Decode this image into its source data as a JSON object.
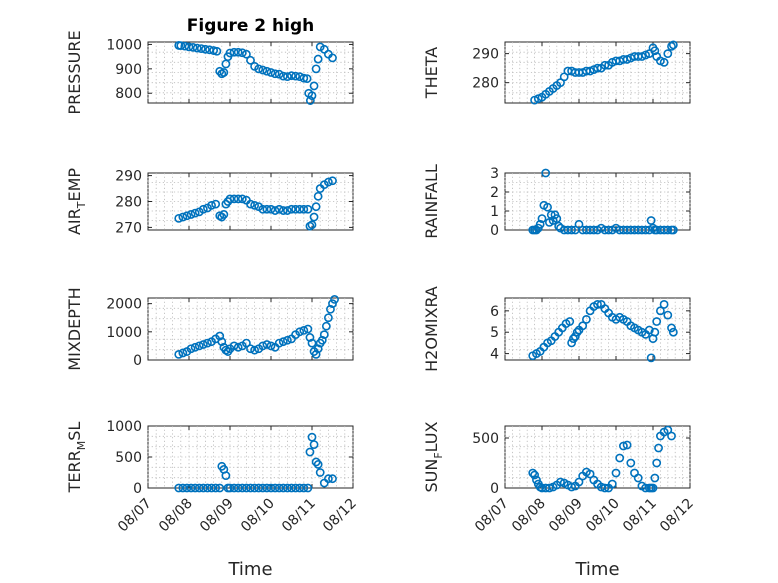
{
  "figure": {
    "title": "Figure 2 high",
    "xlabel": "Time",
    "marker_color": "#0072BD"
  },
  "chart_data": [
    {
      "type": "scatter",
      "ylabel": "PRESSURE",
      "title": "Figure 2 high",
      "xlim": [
        0,
        5
      ],
      "ylim": [
        760,
        1010
      ],
      "yticks": [
        800,
        900,
        1000
      ],
      "grid": true,
      "segments": [
        {
          "x": [
            0.75,
            0.8,
            0.9,
            1.0,
            1.1,
            1.2,
            1.3,
            1.4,
            1.5,
            1.6,
            1.68,
            1.75,
            1.8,
            1.85,
            1.9,
            1.95,
            2.0,
            2.1,
            2.2,
            2.3,
            2.4,
            2.5,
            2.6,
            2.7,
            2.8,
            2.9,
            3.0,
            3.1,
            3.2,
            3.3,
            3.4,
            3.5,
            3.6,
            3.7,
            3.8,
            3.88,
            3.92,
            3.96,
            4.0,
            4.05,
            4.1,
            4.15,
            4.2,
            4.3,
            4.4,
            4.5
          ],
          "y": [
            996,
            995,
            993,
            990,
            988,
            985,
            983,
            980,
            978,
            975,
            972,
            890,
            880,
            885,
            920,
            950,
            965,
            968,
            968,
            966,
            960,
            935,
            910,
            900,
            895,
            890,
            885,
            880,
            878,
            870,
            868,
            872,
            870,
            868,
            862,
            860,
            800,
            770,
            790,
            830,
            900,
            940,
            990,
            980,
            960,
            945
          ]
        }
      ]
    },
    {
      "type": "scatter",
      "ylabel": "THETA",
      "xlim": [
        0,
        5
      ],
      "ylim": [
        273,
        294
      ],
      "yticks": [
        280,
        290
      ],
      "grid": true,
      "segments": [
        {
          "x": [
            0.8,
            0.9,
            1.0,
            1.1,
            1.2,
            1.3,
            1.4,
            1.5,
            1.6,
            1.7,
            1.8,
            1.9,
            2.0,
            2.1,
            2.2,
            2.3,
            2.4,
            2.5,
            2.6,
            2.7,
            2.8,
            2.9,
            3.0,
            3.1,
            3.2,
            3.3,
            3.4,
            3.5,
            3.6,
            3.7,
            3.8,
            3.9,
            4.0,
            4.05,
            4.1,
            4.2,
            4.3,
            4.4,
            4.5,
            4.55
          ],
          "y": [
            274,
            274.5,
            275,
            276,
            277,
            278,
            279,
            280,
            282,
            284,
            284,
            283.5,
            283.5,
            283.5,
            284,
            284,
            284.5,
            285,
            285,
            286,
            286,
            287,
            287.5,
            287.5,
            288,
            288,
            288.5,
            289,
            289,
            289,
            289.5,
            290,
            292,
            291,
            289,
            287.5,
            287,
            290,
            292.5,
            293
          ]
        }
      ]
    },
    {
      "type": "scatter",
      "ylabel": "AIR_TEMP",
      "xlim": [
        0,
        5
      ],
      "ylim": [
        269,
        291
      ],
      "yticks": [
        270,
        280,
        290
      ],
      "grid": true,
      "segments": [
        {
          "x": [
            0.75,
            0.85,
            0.95,
            1.05,
            1.15,
            1.25,
            1.35,
            1.45,
            1.55,
            1.65,
            1.75,
            1.8,
            1.85,
            1.9,
            1.95,
            2.0,
            2.1,
            2.2,
            2.3,
            2.4,
            2.5,
            2.6,
            2.7,
            2.8,
            2.9,
            3.0,
            3.1,
            3.2,
            3.3,
            3.4,
            3.5,
            3.6,
            3.7,
            3.8,
            3.9,
            3.95,
            4.0,
            4.05,
            4.1,
            4.15,
            4.2,
            4.3,
            4.4,
            4.5
          ],
          "y": [
            273.5,
            274,
            274.5,
            275,
            275.5,
            276,
            277,
            277.5,
            278.5,
            279,
            274.5,
            274,
            275,
            279,
            280,
            281,
            281,
            281,
            281,
            280.5,
            279,
            278.5,
            278,
            277,
            277,
            277,
            276.5,
            277,
            276.5,
            276.5,
            277,
            277,
            277,
            277,
            277,
            270.5,
            271,
            274,
            278,
            282,
            285,
            286.5,
            287.5,
            288
          ]
        }
      ]
    },
    {
      "type": "scatter",
      "ylabel": "RAINFALL",
      "xlim": [
        0,
        5
      ],
      "ylim": [
        0,
        3
      ],
      "yticks": [
        0,
        1,
        2,
        3
      ],
      "grid": true,
      "segments": [
        {
          "x": [
            0.75,
            0.8,
            0.85,
            0.9,
            0.95,
            1.0,
            1.05,
            1.1,
            1.15,
            1.2,
            1.25,
            1.3,
            1.35,
            1.4,
            1.45,
            1.5,
            1.6,
            1.7,
            1.8,
            1.9,
            2.0,
            2.1,
            2.2,
            2.3,
            2.4,
            2.5,
            2.6,
            2.7,
            2.8,
            2.9,
            3.0,
            3.1,
            3.2,
            3.3,
            3.4,
            3.5,
            3.6,
            3.7,
            3.8,
            3.9,
            3.95,
            4.0,
            4.05,
            4.1,
            4.2,
            4.3,
            4.4,
            4.5,
            4.55
          ],
          "y": [
            0,
            0,
            0,
            0.1,
            0.3,
            0.6,
            1.3,
            3.0,
            1.2,
            0.4,
            0.8,
            0.5,
            0.8,
            0.6,
            0.2,
            0.1,
            0,
            0,
            0,
            0,
            0.3,
            0,
            0,
            0,
            0,
            0,
            0.1,
            0,
            0,
            0,
            0.1,
            0,
            0,
            0,
            0,
            0,
            0,
            0,
            0,
            0,
            0.5,
            0.1,
            0,
            0,
            0,
            0,
            0,
            0,
            0
          ]
        }
      ]
    },
    {
      "type": "scatter",
      "ylabel": "MIXDEPTH",
      "xlim": [
        0,
        5
      ],
      "ylim": [
        0,
        2200
      ],
      "yticks": [
        0,
        1000,
        2000
      ],
      "grid": true,
      "segments": [
        {
          "x": [
            0.75,
            0.85,
            0.95,
            1.05,
            1.15,
            1.25,
            1.35,
            1.45,
            1.55,
            1.65,
            1.75,
            1.8,
            1.85,
            1.9,
            1.95,
            2.0,
            2.1,
            2.2,
            2.3,
            2.4,
            2.5,
            2.6,
            2.7,
            2.8,
            2.9,
            3.0,
            3.1,
            3.2,
            3.3,
            3.4,
            3.5,
            3.6,
            3.7,
            3.8,
            3.9,
            3.95,
            4.0,
            4.05,
            4.1,
            4.15,
            4.2,
            4.25,
            4.3,
            4.35,
            4.4,
            4.45,
            4.5,
            4.55
          ],
          "y": [
            200,
            250,
            300,
            400,
            450,
            500,
            550,
            600,
            650,
            750,
            850,
            650,
            450,
            350,
            300,
            400,
            500,
            450,
            500,
            600,
            400,
            350,
            400,
            500,
            550,
            500,
            450,
            600,
            650,
            700,
            750,
            900,
            1000,
            1050,
            1100,
            800,
            600,
            300,
            200,
            400,
            600,
            700,
            900,
            1200,
            1500,
            1800,
            2000,
            2150
          ]
        }
      ]
    },
    {
      "type": "scatter",
      "ylabel": "H2OMIXRA",
      "xlim": [
        0,
        5
      ],
      "ylim": [
        3.7,
        6.6
      ],
      "yticks": [
        4,
        5,
        6
      ],
      "grid": true,
      "segments": [
        {
          "x": [
            0.75,
            0.85,
            0.95,
            1.05,
            1.15,
            1.25,
            1.35,
            1.45,
            1.55,
            1.65,
            1.75,
            1.8,
            1.85,
            1.9,
            1.95,
            2.0,
            2.1,
            2.2,
            2.3,
            2.4,
            2.5,
            2.6,
            2.7,
            2.8,
            2.9,
            3.0,
            3.1,
            3.2,
            3.3,
            3.4,
            3.5,
            3.6,
            3.7,
            3.8,
            3.9,
            3.95,
            4.0,
            4.05,
            4.1,
            4.2,
            4.3,
            4.4,
            4.5,
            4.55
          ],
          "y": [
            3.9,
            4.0,
            4.1,
            4.3,
            4.5,
            4.6,
            4.8,
            5.0,
            5.2,
            5.4,
            5.5,
            4.5,
            4.7,
            4.8,
            5.0,
            5.1,
            5.3,
            5.6,
            6.0,
            6.2,
            6.3,
            6.3,
            6.1,
            5.9,
            5.7,
            5.6,
            5.7,
            5.6,
            5.5,
            5.3,
            5.2,
            5.1,
            5.0,
            4.9,
            5.1,
            3.8,
            4.7,
            5.0,
            5.5,
            6.0,
            6.3,
            5.8,
            5.2,
            5.0
          ]
        }
      ]
    },
    {
      "type": "scatter",
      "ylabel": "TERR_MSL",
      "xlim": [
        0,
        5
      ],
      "ylim": [
        0,
        1000
      ],
      "yticks": [
        0,
        500,
        1000
      ],
      "grid": true,
      "xticklabels": [
        "08/07",
        "08/08",
        "08/09",
        "08/10",
        "08/11",
        "08/12"
      ],
      "segments": [
        {
          "x": [
            0.75,
            0.85,
            0.95,
            1.05,
            1.15,
            1.25,
            1.35,
            1.45,
            1.55,
            1.65,
            1.75,
            1.8,
            1.85,
            1.9,
            1.95,
            2.0,
            2.1,
            2.2,
            2.3,
            2.4,
            2.5,
            2.6,
            2.7,
            2.8,
            2.9,
            3.0,
            3.1,
            3.2,
            3.3,
            3.4,
            3.5,
            3.6,
            3.7,
            3.8,
            3.9,
            3.95,
            4.0,
            4.05,
            4.1,
            4.15,
            4.2,
            4.3,
            4.4,
            4.5
          ],
          "y": [
            0,
            0,
            0,
            0,
            0,
            0,
            0,
            0,
            0,
            0,
            0,
            350,
            300,
            200,
            0,
            0,
            0,
            0,
            0,
            0,
            0,
            0,
            0,
            0,
            0,
            0,
            0,
            0,
            0,
            0,
            0,
            0,
            0,
            0,
            0,
            580,
            820,
            700,
            420,
            380,
            250,
            80,
            150,
            150
          ]
        }
      ]
    },
    {
      "type": "scatter",
      "ylabel": "SUN_FLUX",
      "xlim": [
        0,
        5
      ],
      "ylim": [
        0,
        620
      ],
      "yticks": [
        0,
        500
      ],
      "grid": true,
      "xticklabels": [
        "08/07",
        "08/08",
        "08/09",
        "08/10",
        "08/11",
        "08/12"
      ],
      "segments": [
        {
          "x": [
            0.75,
            0.8,
            0.85,
            0.9,
            0.95,
            1.0,
            1.1,
            1.2,
            1.3,
            1.4,
            1.5,
            1.6,
            1.7,
            1.8,
            1.9,
            2.0,
            2.1,
            2.2,
            2.3,
            2.4,
            2.5,
            2.6,
            2.7,
            2.8,
            2.9,
            3.0,
            3.1,
            3.2,
            3.3,
            3.4,
            3.5,
            3.6,
            3.7,
            3.8,
            3.9,
            3.95,
            4.0,
            4.05,
            4.1,
            4.15,
            4.2,
            4.3,
            4.4,
            4.5
          ],
          "y": [
            150,
            130,
            80,
            40,
            10,
            0,
            0,
            0,
            10,
            30,
            60,
            50,
            30,
            10,
            20,
            60,
            120,
            160,
            140,
            80,
            40,
            10,
            0,
            0,
            40,
            150,
            300,
            420,
            430,
            250,
            150,
            100,
            20,
            0,
            0,
            0,
            0,
            100,
            250,
            400,
            520,
            560,
            580,
            520
          ]
        }
      ]
    }
  ]
}
